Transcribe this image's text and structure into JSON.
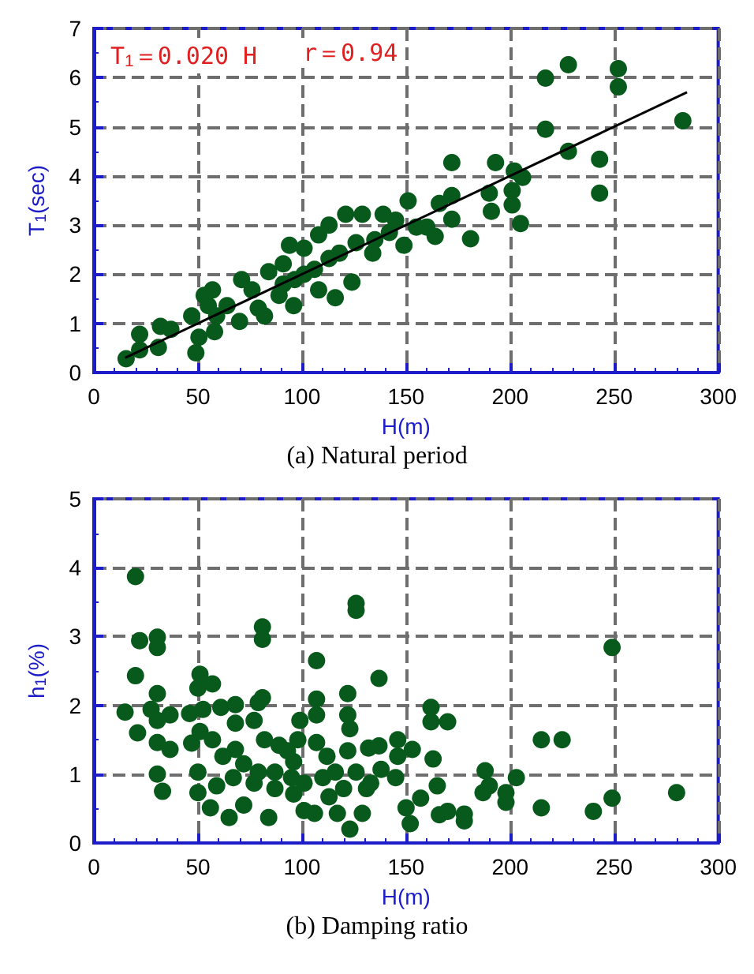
{
  "chart_data": [
    {
      "type": "scatter",
      "title": "(a) Natural period",
      "xlabel": "H(m)",
      "ylabel": "T$_{1}$(sec)",
      "annotations": [
        "T$_{1}$＝0.020 H",
        "r＝0.94"
      ],
      "xlim": [
        0,
        300
      ],
      "xticks": [
        0,
        50,
        100,
        150,
        200,
        250,
        300
      ],
      "ylim": [
        0,
        7
      ],
      "yticks": [
        0,
        1,
        2,
        3,
        4,
        5,
        6,
        7
      ],
      "grid": true,
      "series": [
        {
          "marker": "circle",
          "color": "#075a1b",
          "x": [
            15.5,
            22,
            22,
            32,
            37,
            31,
            47,
            49,
            50.5,
            57,
            55,
            58,
            59,
            71,
            70,
            76,
            79,
            84,
            82,
            89,
            91,
            96,
            96.5,
            101,
            108,
            108,
            116,
            113,
            118,
            121,
            126,
            129,
            124,
            134,
            139,
            142,
            149,
            151,
            155,
            160,
            164,
            166,
            172,
            172,
            172,
            181,
            190,
            191,
            193,
            201,
            201,
            202,
            206,
            205,
            217,
            217,
            228,
            228,
            243,
            243,
            252,
            252,
            283,
            94,
            101,
            106,
            91,
            64,
            53,
            145,
            135,
            113
          ],
          "values": [
            0.28,
            0.46,
            0.78,
            0.94,
            0.88,
            0.51,
            1.15,
            0.4,
            0.72,
            1.68,
            1.36,
            0.83,
            1.15,
            1.89,
            1.04,
            1.68,
            1.31,
            2.05,
            1.15,
            1.57,
            2.21,
            1.36,
            1.89,
            2.53,
            2.8,
            1.68,
            1.52,
            2.32,
            2.43,
            3.22,
            2.64,
            3.22,
            1.84,
            2.43,
            3.22,
            2.85,
            2.59,
            3.49,
            2.96,
            2.96,
            2.77,
            3.44,
            3.6,
            4.27,
            3.12,
            2.72,
            3.65,
            3.28,
            4.27,
            3.7,
            3.41,
            4.1,
            3.97,
            3.03,
            5.99,
            4.95,
            6.26,
            4.5,
            4.34,
            3.65,
            6.18,
            5.81,
            5.12,
            2.59,
            2.0,
            2.1,
            1.8,
            1.36,
            1.57,
            3.1,
            2.7,
            3.0
          ]
        },
        {
          "type": "line",
          "marker": "none",
          "color": "#000000",
          "x": [
            15,
            285
          ],
          "values": [
            0.3,
            5.7
          ]
        }
      ]
    },
    {
      "type": "scatter",
      "title": "(b) Damping ratio",
      "xlabel": "H(m)",
      "ylabel": "h$_{1}$(%)",
      "xlim": [
        0,
        300
      ],
      "xticks": [
        0,
        50,
        100,
        150,
        200,
        250,
        300
      ],
      "ylim": [
        0,
        5
      ],
      "yticks": [
        0,
        1,
        2,
        3,
        4,
        5
      ],
      "grid": true,
      "marker": "circle",
      "series": [
        {
          "color": "#075a1b",
          "x": [
            20,
            22,
            30.5,
            30.5,
            20,
            15,
            21,
            30.5,
            27.5,
            30.5,
            36.6,
            30.5,
            36.6,
            30.5,
            33,
            51,
            50,
            57,
            46,
            52.4,
            61,
            51,
            47,
            50,
            50,
            56,
            59,
            65,
            68,
            68,
            68,
            77,
            81,
            81,
            81,
            79,
            82,
            87,
            84,
            89,
            72,
            77,
            99,
            98,
            96,
            96,
            101,
            106,
            107,
            107,
            107,
            107,
            112,
            113,
            122,
            122,
            123,
            122,
            126,
            126,
            117,
            123,
            129,
            132,
            137,
            137,
            133,
            138,
            146,
            146,
            153,
            145,
            150,
            152,
            157,
            162,
            162,
            170,
            163,
            165,
            166,
            170,
            178,
            178,
            188,
            190,
            187,
            198,
            198,
            203,
            215,
            225,
            215,
            240,
            249,
            249,
            280,
            57,
            62,
            72,
            67,
            79,
            87,
            93,
            95,
            101,
            110,
            116,
            120,
            126,
            131
          ],
          "values": [
            3.87,
            2.94,
            2.99,
            2.84,
            2.43,
            1.9,
            1.6,
            2.17,
            1.94,
            1.78,
            1.86,
            1.46,
            1.36,
            1.0,
            0.75,
            2.45,
            2.25,
            2.31,
            1.88,
            1.94,
            1.97,
            1.62,
            1.45,
            1.03,
            0.73,
            0.51,
            0.83,
            0.37,
            2.01,
            1.74,
            1.36,
            1.78,
            3.14,
            2.96,
            2.11,
            2.04,
            1.5,
            1.03,
            0.37,
            1.42,
            0.55,
            0.87,
            1.78,
            1.5,
            1.18,
            0.71,
            0.47,
            0.43,
            2.65,
            2.09,
            1.86,
            1.46,
            1.26,
            0.67,
            2.17,
            1.86,
            1.66,
            1.34,
            3.48,
            3.38,
            0.43,
            0.2,
            0.43,
            1.38,
            2.39,
            1.41,
            0.87,
            1.07,
            1.5,
            1.26,
            1.36,
            0.95,
            0.51,
            0.28,
            0.65,
            1.97,
            1.76,
            1.76,
            1.22,
            0.83,
            0.41,
            0.46,
            0.42,
            0.32,
            1.05,
            0.83,
            0.73,
            0.73,
            0.59,
            0.95,
            1.5,
            1.5,
            0.51,
            0.46,
            2.84,
            0.65,
            0.73,
            1.5,
            1.26,
            1.15,
            0.95,
            1.03,
            0.79,
            1.34,
            0.95,
            0.87,
            0.95,
            1.03,
            0.79,
            1.03,
            0.79
          ]
        }
      ]
    }
  ]
}
